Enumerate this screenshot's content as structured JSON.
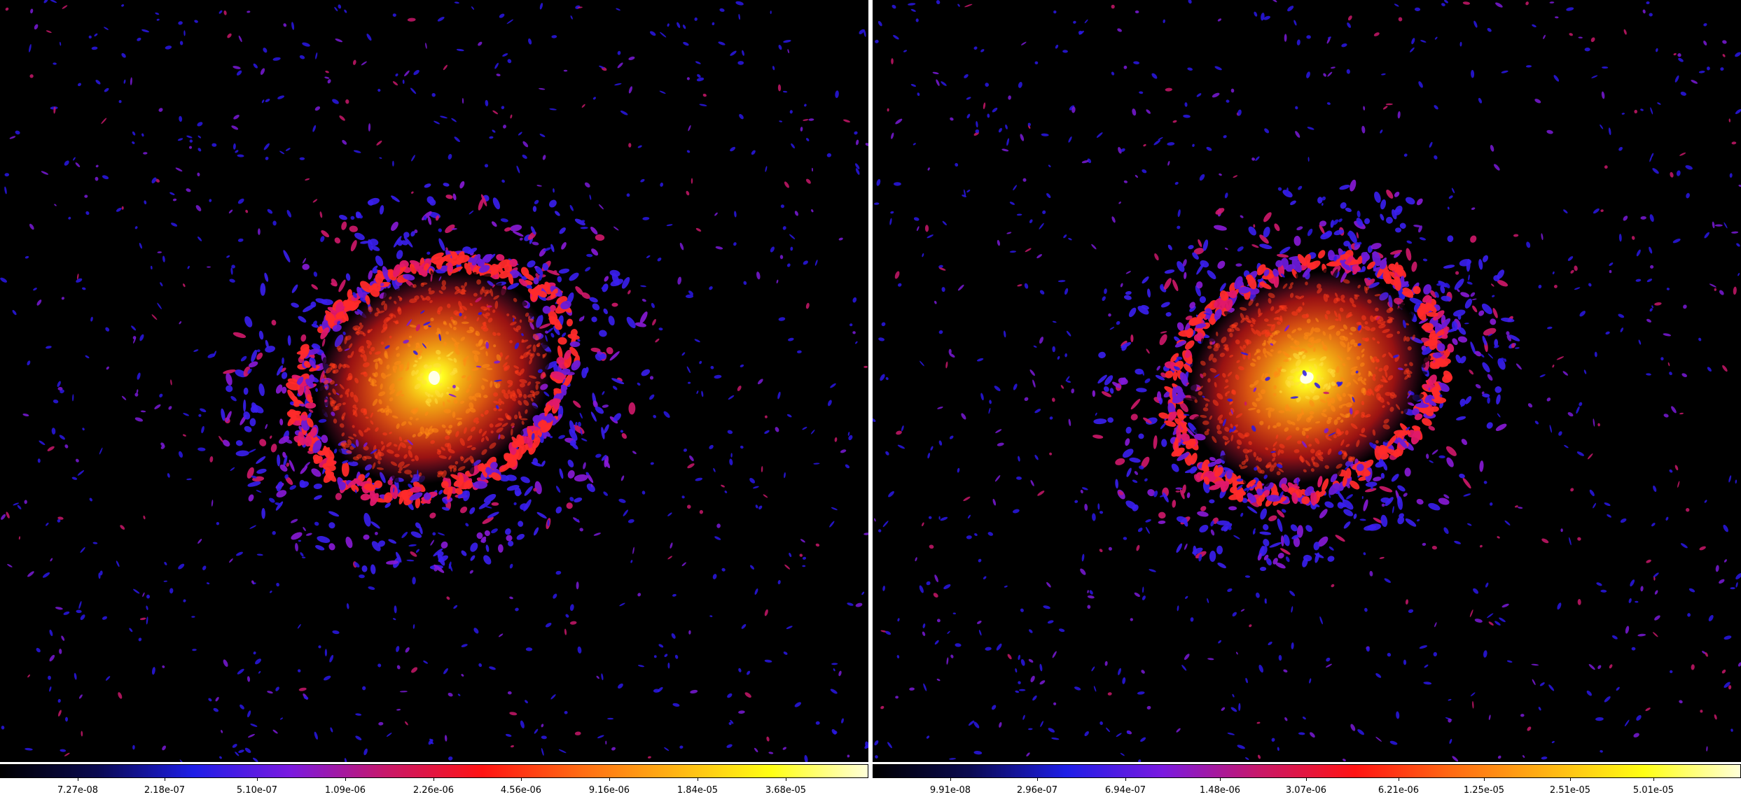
{
  "colormap": "heat",
  "colormap_stops": [
    "#000000",
    "#0a0a50",
    "#1e1ee6",
    "#7a1ae0",
    "#c8186a",
    "#ff1414",
    "#ff6a14",
    "#ffb414",
    "#ffff14",
    "#ffffd8"
  ],
  "background": "#000000",
  "panels": [
    {
      "id": "left",
      "colorbar": {
        "tick_labels": [
          "7.27e-08",
          "2.18e-07",
          "5.10e-07",
          "1.09e-06",
          "2.26e-06",
          "4.56e-06",
          "9.16e-06",
          "1.84e-05",
          "3.68e-05"
        ]
      }
    },
    {
      "id": "right",
      "colorbar": {
        "tick_labels": [
          "9.91e-08",
          "2.96e-07",
          "6.94e-07",
          "1.48e-06",
          "3.07e-06",
          "6.21e-06",
          "1.25e-05",
          "2.51e-05",
          "5.01e-05"
        ]
      }
    }
  ]
}
